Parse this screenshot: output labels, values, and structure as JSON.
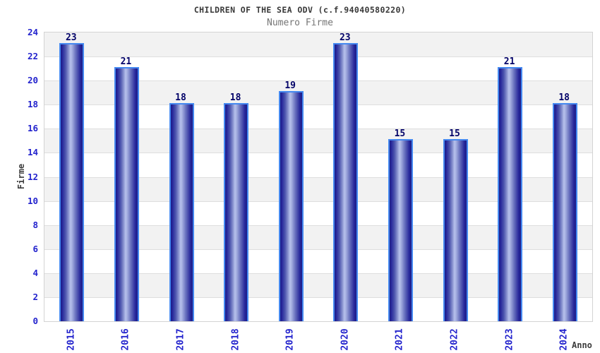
{
  "header": {
    "title": "CHILDREN OF THE SEA ODV (c.f.94040580220)",
    "subtitle": "Numero Firme"
  },
  "chart_data": {
    "type": "bar",
    "title": "CHILDREN OF THE SEA ODV (c.f.94040580220)",
    "subtitle": "Numero Firme",
    "categories": [
      "2015",
      "2016",
      "2017",
      "2018",
      "2019",
      "2020",
      "2021",
      "2022",
      "2023",
      "2024"
    ],
    "values": [
      23,
      21,
      18,
      18,
      19,
      23,
      15,
      15,
      21,
      18
    ],
    "bar_value_labels": [
      "23",
      "21",
      "18",
      "18",
      "19",
      "23",
      "15",
      "15",
      "21",
      "18"
    ],
    "xlabel": "Anno",
    "ylabel": "Firme",
    "ylim": [
      0,
      24
    ],
    "ytick_step": 2,
    "yticks": [
      0,
      2,
      4,
      6,
      8,
      10,
      12,
      14,
      16,
      18,
      20,
      22,
      24
    ],
    "grid": "horizontal gridlines with alternating gray/white bands every 2 units, gray band at top",
    "legend": "none",
    "colors": {
      "bar_dark": "#1c1c86",
      "bar_light": "#b7c1ec",
      "bar_outline": "#4589f0",
      "tick_label": "#2323cd",
      "value_label": "#020268",
      "axis_title": "#3c3c3c",
      "title": "#383838",
      "subtitle": "#757575",
      "band_gray": "#f2f2f2",
      "band_white": "#ffffff",
      "gridline": "#dedede",
      "plot_border": "#d3d3d3"
    }
  }
}
